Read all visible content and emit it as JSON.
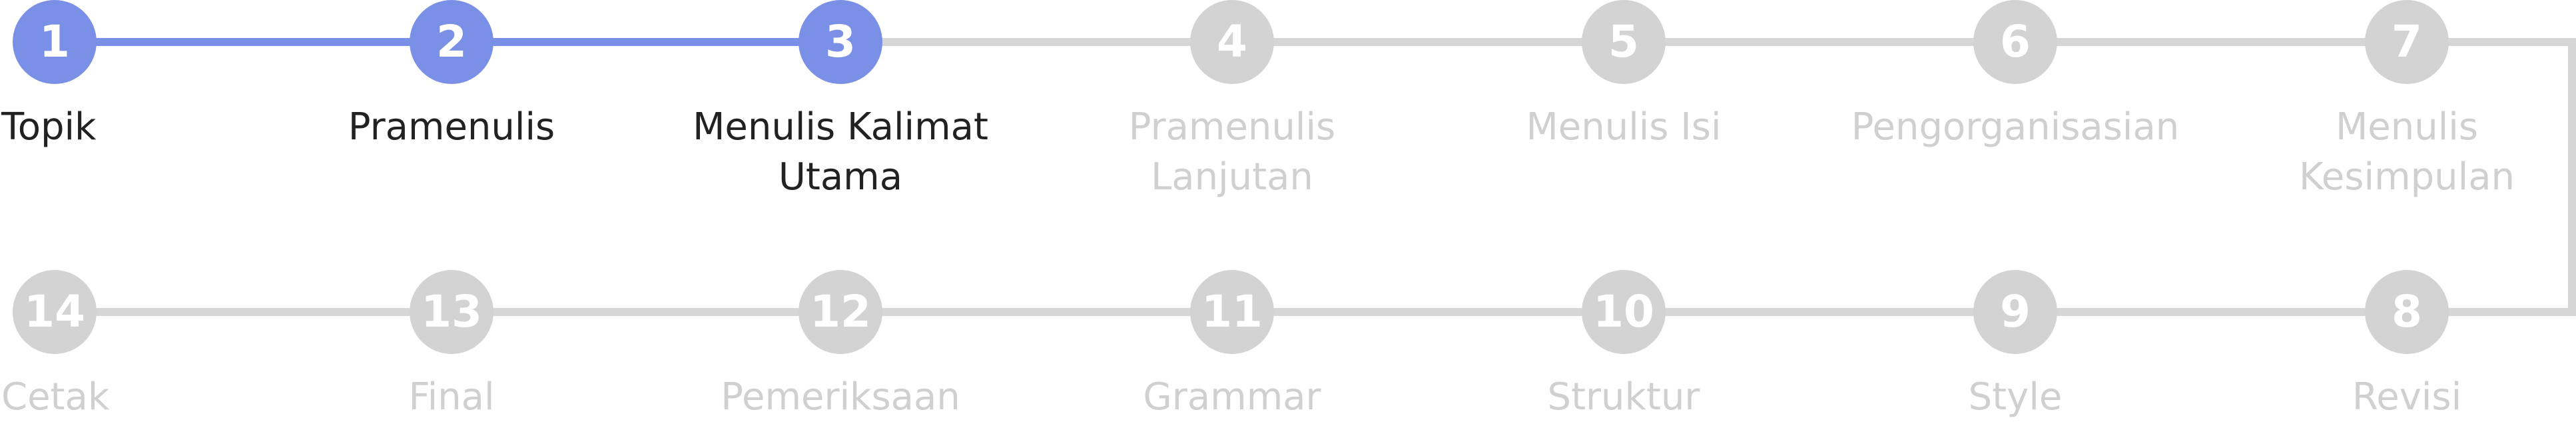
{
  "stepper": {
    "colors": {
      "active": "#7a8fe6",
      "inactive": "#d3d3d3",
      "active_text": "#222222",
      "inactive_text": "#d0d0d0"
    },
    "current_step": 3,
    "steps": [
      {
        "number": "1",
        "label": "Topik"
      },
      {
        "number": "2",
        "label": "Pramenulis"
      },
      {
        "number": "3",
        "label": "Menulis Kalimat\nUtama"
      },
      {
        "number": "4",
        "label": "Pramenulis\nLanjutan"
      },
      {
        "number": "5",
        "label": "Menulis Isi"
      },
      {
        "number": "6",
        "label": "Pengorganisasian"
      },
      {
        "number": "7",
        "label": "Menulis\nKesimpulan"
      },
      {
        "number": "8",
        "label": "Revisi"
      },
      {
        "number": "9",
        "label": "Style"
      },
      {
        "number": "10",
        "label": "Struktur"
      },
      {
        "number": "11",
        "label": "Grammar"
      },
      {
        "number": "12",
        "label": "Pemeriksaan"
      },
      {
        "number": "13",
        "label": "Final"
      },
      {
        "number": "14",
        "label": "Cetak"
      }
    ]
  }
}
